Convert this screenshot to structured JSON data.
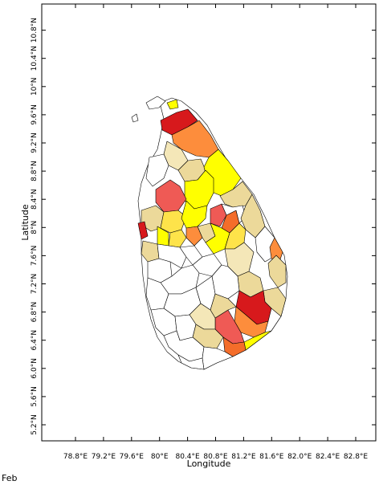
{
  "map": {
    "xlabel": "Longitude",
    "ylabel": "Latitude",
    "x_ticks": [
      "78.8°E",
      "79.2°E",
      "79.6°E",
      "80°E",
      "80.4°E",
      "80.8°E",
      "81.2°E",
      "81.6°E",
      "82.0°E",
      "82.4°E",
      "82.8°E"
    ],
    "y_ticks": [
      "5.2°N",
      "5.6°N",
      "6.0°N",
      "6.4°N",
      "6.8°N",
      "7.2°N",
      "7.6°N",
      "8°N",
      "8.4°N",
      "8.8°N",
      "9.2°N",
      "9.6°N",
      "10°N",
      "10.4°N",
      "10.8°N"
    ],
    "month": "Feb",
    "colors": {
      "red": "#d7191c",
      "salmon": "#ef5a55",
      "orange": "#fd8d3c",
      "dark_orange": "#f46d2a",
      "yellow": "#ffff00",
      "gold": "#fee34a",
      "tan": "#ecd99a",
      "light_tan": "#f4e7b8",
      "white": "#ffffff"
    }
  }
}
